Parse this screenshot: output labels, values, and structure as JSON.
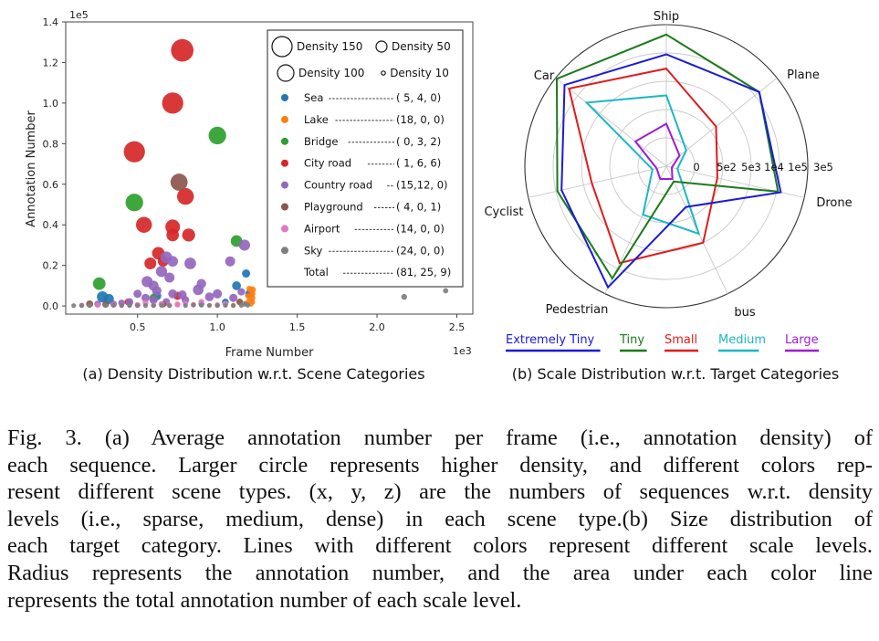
{
  "panel_a_caption": "(a) Density Distribution w.r.t. Scene Categories",
  "panel_b_caption": "(b) Scale Distribution w.r.t. Target Categories",
  "caption": {
    "lines": [
      "Fig. 3.    (a) Average annotation number per frame (i.e., annotation density) of",
      "each sequence. Larger circle represents higher density, and different colors rep-",
      "resent different scene types. (x, y, z) are the numbers of sequences w.r.t. density",
      "levels (i.e., sparse, medium, dense) in each scene type.(b) Size distribution of",
      "each target category. Lines with different colors represent different scale levels.",
      "Radius represents the annotation number, and the area under each color line",
      "represents the total annotation number of each scale level."
    ]
  },
  "chart_data": [
    {
      "type": "scatter",
      "title": "(a) Density Distribution w.r.t. Scene Categories",
      "xlabel": "Frame Number",
      "ylabel": "Annotation Number",
      "x_exponent_label": "1e3",
      "y_exponent_label": "1e5",
      "xlim": [
        0.05,
        2.6
      ],
      "ylim": [
        -0.04,
        1.4
      ],
      "x_ticks": [
        0.5,
        1.0,
        1.5,
        2.0,
        2.5
      ],
      "x_tick_labels": [
        "0.5",
        "1.0",
        "1.5",
        "2.0",
        "2.5"
      ],
      "y_ticks": [
        0.0,
        0.2,
        0.4,
        0.6,
        0.8,
        1.0,
        1.2,
        1.4
      ],
      "y_tick_labels": [
        "0.0",
        "0.2",
        "0.4",
        "0.6",
        "0.8",
        "1.0",
        "1.2",
        "1.4"
      ],
      "size_legend": [
        {
          "label": "Density 150",
          "density": 150
        },
        {
          "label": "Density 50",
          "density": 50
        },
        {
          "label": "Density 100",
          "density": 100
        },
        {
          "label": "Density 10",
          "density": 10
        }
      ],
      "series": [
        {
          "name": "Sea",
          "counts": "( 5, 4, 0)",
          "color": "#1f77b4",
          "points": [
            [
              0.28,
              0.045,
              22
            ],
            [
              0.32,
              0.035,
              18
            ],
            [
              0.62,
              0.05,
              15
            ],
            [
              1.12,
              0.1,
              14
            ],
            [
              1.18,
              0.16,
              12
            ],
            [
              1.2,
              0.06,
              12
            ],
            [
              1.05,
              0.02,
              8
            ],
            [
              0.9,
              0.01,
              6
            ],
            [
              0.45,
              0.01,
              6
            ]
          ]
        },
        {
          "name": "Lake",
          "counts": "(18, 0, 0)",
          "color": "#ff7f0e",
          "points": [
            [
              1.22,
              0.08,
              8
            ],
            [
              1.22,
              0.06,
              6
            ],
            [
              1.22,
              0.04,
              6
            ],
            [
              1.22,
              0.02,
              5
            ],
            [
              1.21,
              0.01,
              5
            ],
            [
              1.2,
              0.085,
              6
            ],
            [
              1.19,
              0.05,
              5
            ],
            [
              1.2,
              0.03,
              5
            ],
            [
              1.18,
              0.015,
              4
            ],
            [
              1.21,
              0.075,
              5
            ],
            [
              0.6,
              0.005,
              4
            ],
            [
              0.75,
              0.005,
              4
            ],
            [
              0.85,
              0.008,
              4
            ],
            [
              1.0,
              0.006,
              4
            ],
            [
              0.4,
              0.003,
              4
            ],
            [
              1.1,
              0.004,
              4
            ],
            [
              0.5,
              0.004,
              4
            ],
            [
              0.95,
              0.003,
              4
            ]
          ]
        },
        {
          "name": "Bridge",
          "counts": "( 0, 3, 2)",
          "color": "#2ca02c",
          "points": [
            [
              1.0,
              0.84,
              55
            ],
            [
              0.48,
              0.51,
              55
            ],
            [
              0.26,
              0.11,
              28
            ],
            [
              1.12,
              0.32,
              24
            ],
            [
              0.6,
              0.04,
              12
            ]
          ]
        },
        {
          "name": "City road",
          "counts": "( 1, 6, 6)",
          "color": "#d62728",
          "points": [
            [
              0.78,
              1.26,
              90
            ],
            [
              0.72,
              1.0,
              80
            ],
            [
              0.48,
              0.76,
              80
            ],
            [
              0.8,
              0.54,
              50
            ],
            [
              0.54,
              0.4,
              45
            ],
            [
              0.72,
              0.39,
              38
            ],
            [
              0.82,
              0.35,
              30
            ],
            [
              0.72,
              0.35,
              28
            ],
            [
              0.63,
              0.26,
              28
            ],
            [
              0.58,
              0.21,
              25
            ],
            [
              0.66,
              0.22,
              20
            ],
            [
              0.75,
              0.05,
              12
            ],
            [
              0.44,
              0.02,
              8
            ]
          ]
        },
        {
          "name": "Country road",
          "counts": "(15,12, 0)",
          "color": "#9467bd",
          "points": [
            [
              1.17,
              0.3,
              22
            ],
            [
              0.68,
              0.24,
              24
            ],
            [
              0.72,
              0.22,
              20
            ],
            [
              0.65,
              0.17,
              22
            ],
            [
              0.83,
              0.21,
              24
            ],
            [
              1.08,
              0.22,
              18
            ],
            [
              0.56,
              0.12,
              22
            ],
            [
              0.6,
              0.1,
              18
            ],
            [
              0.7,
              0.14,
              18
            ],
            [
              0.62,
              0.075,
              16
            ],
            [
              0.88,
              0.08,
              20
            ],
            [
              0.9,
              0.11,
              16
            ],
            [
              0.72,
              0.06,
              14
            ],
            [
              0.78,
              0.055,
              14
            ],
            [
              1.0,
              0.06,
              15
            ],
            [
              0.95,
              0.045,
              14
            ],
            [
              0.6,
              0.03,
              12
            ],
            [
              0.55,
              0.04,
              12
            ],
            [
              0.68,
              0.02,
              10
            ],
            [
              0.45,
              0.02,
              10
            ],
            [
              0.4,
              0.015,
              8
            ],
            [
              0.35,
              0.01,
              8
            ],
            [
              0.25,
              0.01,
              8
            ],
            [
              0.8,
              0.03,
              10
            ],
            [
              1.1,
              0.04,
              12
            ],
            [
              1.15,
              0.07,
              10
            ],
            [
              0.5,
              0.06,
              12
            ]
          ]
        },
        {
          "name": "Playground",
          "counts": "( 4, 0, 1)",
          "color": "#8c564b",
          "points": [
            [
              0.76,
              0.61,
              52
            ],
            [
              0.2,
              0.01,
              9
            ],
            [
              0.3,
              0.008,
              8
            ],
            [
              1.14,
              0.02,
              8
            ],
            [
              0.66,
              0.008,
              7
            ]
          ]
        },
        {
          "name": "Airport",
          "counts": "(14, 0, 0)",
          "color": "#e377c2",
          "points": [
            [
              0.55,
              0.015,
              6
            ],
            [
              0.65,
              0.01,
              6
            ],
            [
              0.9,
              0.02,
              6
            ],
            [
              0.5,
              0.005,
              6
            ],
            [
              0.75,
              0.008,
              6
            ],
            [
              0.35,
              0.005,
              5
            ],
            [
              0.25,
              0.004,
              5
            ],
            [
              0.15,
              0.003,
              5
            ],
            [
              1.05,
              0.01,
              6
            ],
            [
              0.85,
              0.006,
              5
            ],
            [
              1.0,
              0.005,
              5
            ],
            [
              0.7,
              0.003,
              5
            ],
            [
              0.6,
              0.004,
              5
            ],
            [
              0.8,
              0.012,
              5
            ]
          ]
        },
        {
          "name": "Sky",
          "counts": "(24, 0, 0)",
          "color": "#7f7f7f",
          "points": [
            [
              2.17,
              0.045,
              6
            ],
            [
              2.43,
              0.075,
              5
            ],
            [
              1.17,
              0.01,
              5
            ],
            [
              1.19,
              0.005,
              5
            ],
            [
              0.85,
              0.005,
              4
            ],
            [
              0.9,
              0.004,
              4
            ],
            [
              0.95,
              0.003,
              4
            ],
            [
              0.8,
              0.002,
              4
            ],
            [
              0.7,
              0.002,
              4
            ],
            [
              0.65,
              0.003,
              4
            ],
            [
              0.55,
              0.002,
              4
            ],
            [
              0.45,
              0.002,
              4
            ],
            [
              0.5,
              0.003,
              4
            ],
            [
              0.4,
              0.002,
              4
            ],
            [
              0.3,
              0.002,
              4
            ],
            [
              0.35,
              0.003,
              4
            ],
            [
              0.2,
              0.002,
              4
            ],
            [
              0.15,
              0.003,
              4
            ],
            [
              0.1,
              0.002,
              4
            ],
            [
              1.0,
              0.002,
              4
            ],
            [
              1.05,
              0.003,
              4
            ],
            [
              1.1,
              0.002,
              4
            ],
            [
              1.15,
              0.003,
              4
            ],
            [
              0.6,
              0.002,
              4
            ]
          ]
        }
      ],
      "total_label": "Total",
      "total_counts": "(81, 25, 9)"
    },
    {
      "type": "radar",
      "title": "(b) Scale Distribution w.r.t. Target Categories",
      "axes": [
        "Ship",
        "Plane",
        "Drone",
        "bus",
        "Pedestrian",
        "Cyclist",
        "Car"
      ],
      "axis_angles_deg": [
        90,
        38.57,
        -12.86,
        -64.29,
        -115.71,
        -167.14,
        141.43
      ],
      "radial_tick_labels": [
        "0",
        "5e2",
        "5e3",
        "1e4",
        "1e5",
        "3e5"
      ],
      "radial_scale": "log",
      "series": [
        {
          "name": "Extremely Tiny",
          "color": "#1a1ad6",
          "values": [
            0.79,
            0.84,
            0.83,
            0.32,
            0.95,
            0.76,
            0.92
          ]
        },
        {
          "name": "Tiny",
          "color": "#1a7a1a",
          "values": [
            0.93,
            0.84,
            0.81,
            0.12,
            0.88,
            0.79,
            0.99
          ]
        },
        {
          "name": "Small",
          "color": "#e31a1a",
          "values": [
            0.69,
            0.45,
            0.37,
            0.6,
            0.76,
            0.54,
            0.88
          ]
        },
        {
          "name": "Medium",
          "color": "#1ab8c4",
          "values": [
            0.5,
            0.18,
            0.08,
            0.53,
            0.38,
            0.1,
            0.72
          ]
        },
        {
          "name": "Large",
          "color": "#a01ad6",
          "values": [
            0.3,
            0.12,
            0.04,
            0.1,
            0.1,
            0.07,
            0.28
          ]
        }
      ]
    }
  ]
}
